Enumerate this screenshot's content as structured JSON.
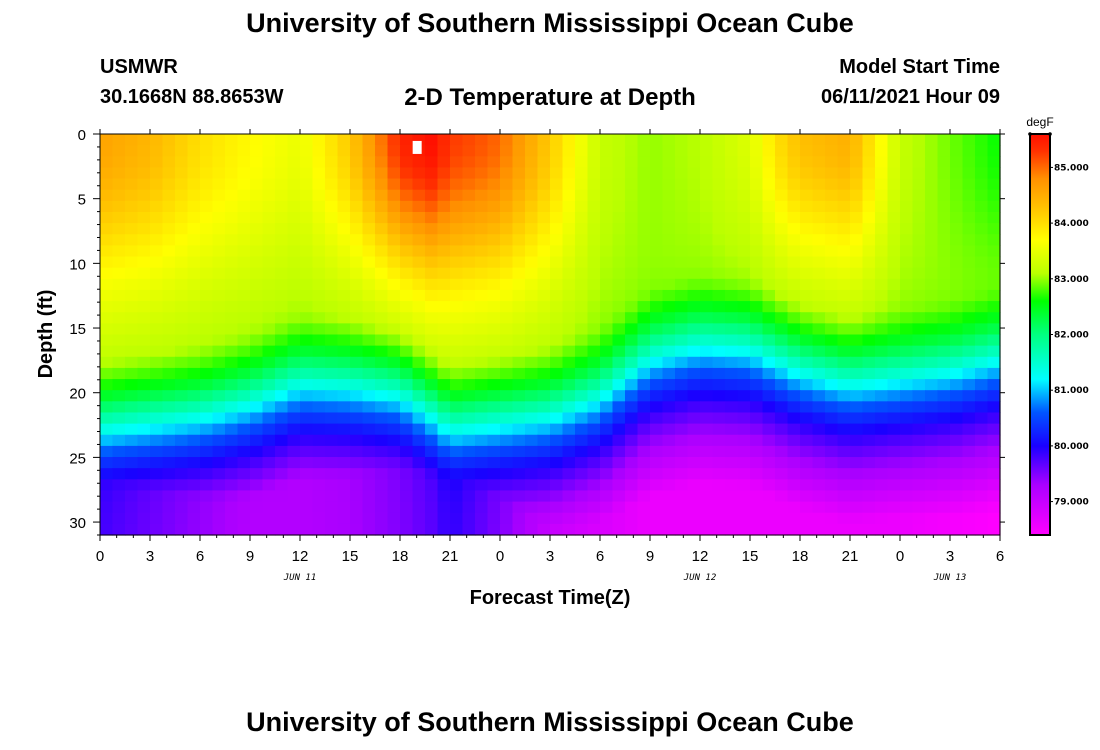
{
  "header": {
    "title": "University of Southern Mississippi Ocean Cube",
    "station": "USMWR",
    "location": "30.1668N  88.8653W",
    "subtitle": "2-D Temperature at Depth",
    "model_start_label": "Model Start Time",
    "model_start_value": "06/11/2021 Hour 09"
  },
  "footer": {
    "title": "University of Southern Mississippi Ocean Cube"
  },
  "chart_data": {
    "type": "heatmap",
    "title": "2-D Temperature at Depth",
    "xlabel": "Forecast Time(Z)",
    "ylabel": "Depth (ft)",
    "x_ticks": [
      "0",
      "3",
      "6",
      "9",
      "12",
      "15",
      "18",
      "21",
      "0",
      "3",
      "6",
      "9",
      "12",
      "15",
      "18",
      "21",
      "0",
      "3",
      "6"
    ],
    "x_range_hours": [
      0,
      54
    ],
    "day_labels": [
      {
        "label": "JUN 11",
        "hour": 12
      },
      {
        "label": "JUN 12",
        "hour": 36
      },
      {
        "label": "JUN 13",
        "hour": 51
      }
    ],
    "y_ticks": [
      0,
      5,
      10,
      15,
      20,
      25,
      30
    ],
    "ylim": [
      0,
      31
    ],
    "colorbar": {
      "unit": "degF",
      "range": [
        78.4,
        85.6
      ],
      "ticks": [
        "79.000",
        "80.000",
        "81.000",
        "82.000",
        "83.000",
        "84.000",
        "85.000"
      ],
      "stops": [
        {
          "value": 78.4,
          "color": "#ff00ff"
        },
        {
          "value": 79.3,
          "color": "#aa00ff"
        },
        {
          "value": 80.0,
          "color": "#1a00ff"
        },
        {
          "value": 80.6,
          "color": "#0055ff"
        },
        {
          "value": 81.2,
          "color": "#00ffff"
        },
        {
          "value": 82.0,
          "color": "#00ff80"
        },
        {
          "value": 82.6,
          "color": "#00ff00"
        },
        {
          "value": 83.1,
          "color": "#bbff00"
        },
        {
          "value": 83.7,
          "color": "#ffff00"
        },
        {
          "value": 84.3,
          "color": "#ffc000"
        },
        {
          "value": 84.8,
          "color": "#ff9000"
        },
        {
          "value": 85.3,
          "color": "#ff3000"
        },
        {
          "value": 85.6,
          "color": "#ff1000"
        }
      ]
    },
    "model": {
      "time_hours": [
        0,
        3,
        6,
        9,
        12,
        15,
        18,
        20,
        21,
        24,
        27,
        30,
        33,
        36,
        39,
        42,
        45,
        48,
        51,
        54
      ],
      "surface_temp_degF": [
        84.6,
        84.4,
        84.0,
        83.8,
        83.6,
        84.3,
        85.4,
        85.8,
        85.6,
        85.0,
        84.2,
        83.2,
        83.0,
        83.1,
        83.4,
        84.5,
        84.7,
        83.2,
        82.9,
        82.6
      ],
      "mixed_layer_depth_ft": [
        22.5,
        22.0,
        21.5,
        20.5,
        19.0,
        19.2,
        19.8,
        21.5,
        22.5,
        22.0,
        21.5,
        20.0,
        17.0,
        16.0,
        16.3,
        18.0,
        19.0,
        18.5,
        18.0,
        17.0
      ],
      "bottom_temp_degF": [
        79.8,
        79.6,
        79.4,
        79.2,
        79.2,
        79.3,
        79.5,
        79.7,
        79.9,
        79.5,
        79.0,
        78.8,
        78.6,
        78.6,
        78.6,
        78.6,
        78.6,
        78.6,
        78.5,
        78.4
      ],
      "warm_core_width_hours": [
        6,
        6,
        6,
        5,
        4,
        5,
        6,
        5,
        4,
        6,
        7,
        8,
        9,
        9,
        8,
        4,
        4,
        5,
        6,
        7
      ]
    },
    "marker": {
      "hour": 19,
      "depth_ft": 1
    }
  }
}
